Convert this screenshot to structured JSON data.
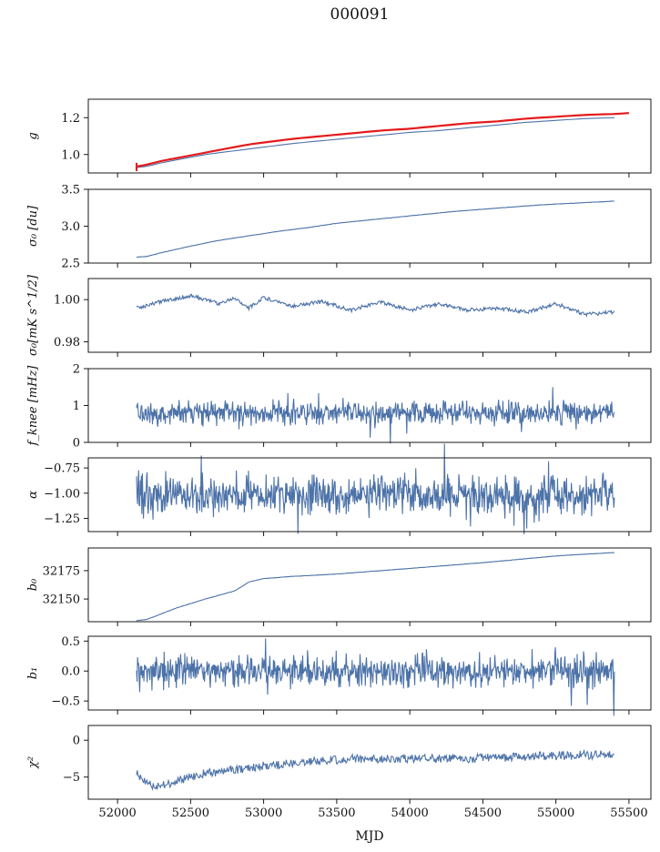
{
  "figure": {
    "title": "000091",
    "xlabel": "MJD"
  },
  "chart_data": [
    {
      "type": "line",
      "id": "g",
      "ylabel": "g",
      "ylim": [
        0.9,
        1.3
      ],
      "yticks": [
        1.0,
        1.2
      ],
      "xlim": [
        51800,
        55650
      ],
      "x_range": [
        52130,
        55400
      ],
      "series": [
        {
          "color": "#4c72a8",
          "x": [
            52130,
            52200,
            52300,
            52400,
            52500,
            52600,
            52700,
            52800,
            52900,
            53000,
            53200,
            53400,
            53600,
            53800,
            54000,
            54200,
            54400,
            54600,
            54800,
            55000,
            55200,
            55400
          ],
          "values": [
            0.93,
            0.935,
            0.955,
            0.97,
            0.985,
            1.0,
            1.01,
            1.02,
            1.03,
            1.04,
            1.06,
            1.075,
            1.09,
            1.105,
            1.12,
            1.13,
            1.145,
            1.16,
            1.175,
            1.185,
            1.195,
            1.2
          ]
        },
        {
          "color": "#e41a1c",
          "x": [
            52130,
            52200,
            52300,
            52400,
            52500,
            52600,
            52700,
            52800,
            52900,
            53000,
            53200,
            53400,
            53600,
            53800,
            54000,
            54200,
            54400,
            54600,
            54800,
            55000,
            55200,
            55400,
            55500
          ],
          "values": [
            0.935,
            0.945,
            0.965,
            0.98,
            0.995,
            1.01,
            1.025,
            1.04,
            1.055,
            1.065,
            1.085,
            1.1,
            1.115,
            1.13,
            1.14,
            1.155,
            1.17,
            1.18,
            1.195,
            1.205,
            1.215,
            1.22,
            1.225
          ]
        }
      ]
    },
    {
      "type": "line",
      "id": "sigma0",
      "ylabel": "σ₀ [du]",
      "ylim": [
        2.5,
        3.5
      ],
      "yticks": [
        2.5,
        3.0,
        3.5
      ],
      "xlim": [
        51800,
        55650
      ],
      "x_range": [
        52130,
        55400
      ],
      "series": [
        {
          "color": "#4c72a8",
          "x": [
            52130,
            52200,
            52300,
            52500,
            52700,
            52900,
            53100,
            53300,
            53500,
            53700,
            53900,
            54100,
            54300,
            54500,
            54700,
            54900,
            55100,
            55300,
            55400
          ],
          "values": [
            2.58,
            2.59,
            2.64,
            2.73,
            2.81,
            2.87,
            2.93,
            2.98,
            3.04,
            3.08,
            3.12,
            3.16,
            3.2,
            3.23,
            3.26,
            3.29,
            3.31,
            3.33,
            3.34
          ]
        }
      ]
    },
    {
      "type": "line",
      "id": "sigma0-temp",
      "ylabel": "σ₀[mK s^1/2]",
      "ylim": [
        0.975,
        1.01
      ],
      "yticks": [
        0.98,
        1.0
      ],
      "xlim": [
        51800,
        55650
      ],
      "x_range": [
        52130,
        55400
      ],
      "series": [
        {
          "color": "#4c72a8",
          "x": [
            52130,
            52300,
            52500,
            52700,
            52800,
            52900,
            53000,
            53200,
            53400,
            53600,
            53800,
            54000,
            54200,
            54400,
            54600,
            54800,
            55000,
            55200,
            55400
          ],
          "values": [
            0.996,
            0.999,
            1.002,
            0.998,
            1.001,
            0.996,
            1.001,
            0.997,
            0.999,
            0.995,
            0.999,
            0.995,
            0.998,
            0.995,
            0.996,
            0.994,
            0.998,
            0.993,
            0.994
          ]
        }
      ]
    },
    {
      "type": "line",
      "id": "fknee",
      "ylabel": "f_knee [mHz]",
      "ylim": [
        0,
        2
      ],
      "yticks": [
        0,
        1,
        2
      ],
      "xlim": [
        51800,
        55650
      ],
      "x_range": [
        52130,
        55400
      ],
      "mean": 0.8,
      "amplitude": 0.18,
      "series": [
        {
          "color": "#4c72a8",
          "x": [],
          "values": []
        }
      ]
    },
    {
      "type": "line",
      "id": "alpha",
      "ylabel": "α",
      "ylim": [
        -1.38,
        -0.65
      ],
      "yticks": [
        -1.25,
        -1.0,
        -0.75
      ],
      "xlim": [
        51800,
        55650
      ],
      "x_range": [
        52130,
        55400
      ],
      "mean": -1.02,
      "amplitude": 0.12,
      "series": [
        {
          "color": "#4c72a8",
          "x": [],
          "values": []
        }
      ]
    },
    {
      "type": "line",
      "id": "b0",
      "ylabel": "b₀",
      "ylim": [
        32130,
        32195
      ],
      "yticks": [
        32150,
        32175
      ],
      "xlim": [
        51800,
        55650
      ],
      "x_range": [
        52130,
        55400
      ],
      "series": [
        {
          "color": "#4c72a8",
          "x": [
            52130,
            52200,
            52400,
            52600,
            52800,
            52900,
            53000,
            53200,
            53500,
            54000,
            54500,
            55000,
            55400
          ],
          "values": [
            32131,
            32132,
            32142,
            32150,
            32157,
            32165,
            32168,
            32170,
            32172,
            32177,
            32182,
            32188,
            32191
          ]
        }
      ]
    },
    {
      "type": "line",
      "id": "b1",
      "ylabel": "b₁",
      "ylim": [
        -0.65,
        0.58
      ],
      "yticks": [
        -0.5,
        0.0,
        0.5
      ],
      "xlim": [
        51800,
        55650
      ],
      "x_range": [
        52130,
        55400
      ],
      "mean": 0.0,
      "amplitude": 0.16,
      "series": [
        {
          "color": "#4c72a8",
          "x": [],
          "values": []
        }
      ]
    },
    {
      "type": "line",
      "id": "chi2",
      "ylabel": "χ²",
      "ylim": [
        -8,
        2
      ],
      "yticks": [
        -5,
        0
      ],
      "xlim": [
        51800,
        55650
      ],
      "x_range": [
        52130,
        55400
      ],
      "xticks": [
        52000,
        52500,
        53000,
        53500,
        54000,
        54500,
        55000,
        55500
      ],
      "series": [
        {
          "color": "#4c72a8",
          "x": [
            52130,
            52250,
            52400,
            52600,
            52800,
            53000,
            53300,
            53600,
            54000,
            54400,
            54800,
            55200,
            55400
          ],
          "values": [
            -4.5,
            -6.5,
            -5.5,
            -4.5,
            -4.0,
            -3.5,
            -3.0,
            -2.5,
            -2.5,
            -2.5,
            -2.2,
            -2.0,
            -2.0
          ]
        }
      ]
    }
  ]
}
